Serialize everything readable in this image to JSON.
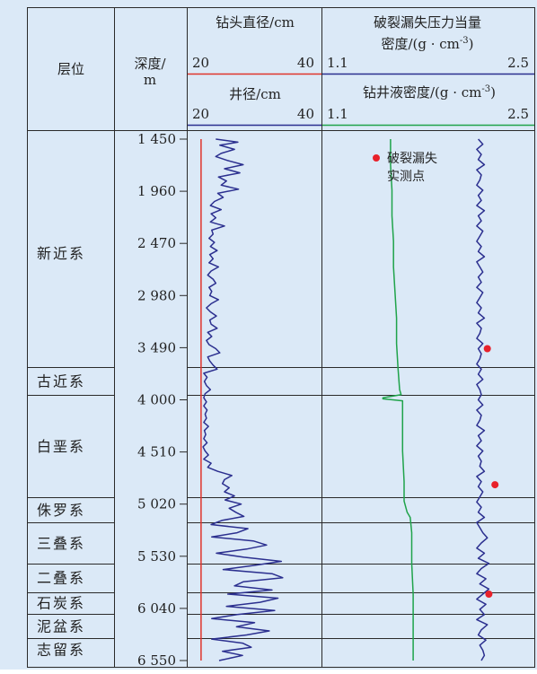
{
  "header": {
    "col_layer": "层位",
    "col_depth_line1": "深度/",
    "col_depth_line2": "m",
    "bit_title": "钻头直径/cm",
    "bit_min": "20",
    "bit_max": "40",
    "hole_title": "井径/cm",
    "hole_min": "20",
    "hole_max": "40",
    "frac_title_line1": "破裂漏失压力当量",
    "frac_title_line2": "密度/(g · cm",
    "frac_title_sup": "-3",
    "frac_title_close": ")",
    "frac_min": "1.1",
    "frac_max": "2.5",
    "mud_title": "钻井液密度/(g · cm",
    "mud_title_sup": "-3",
    "mud_title_close": ")",
    "mud_min": "1.1",
    "mud_max": "2.5"
  },
  "legend": {
    "frac_point_line1": "破裂漏失",
    "frac_point_line2": "实测点"
  },
  "colors": {
    "background": "#dbe9f7",
    "bit_line": "#e0342c",
    "hole_line": "#2b2f8f",
    "mud_line": "#1fa34a",
    "frac_line": "#2b2f8f",
    "frac_points": "#e8212a"
  },
  "chart_data": {
    "type": "line",
    "depth_unit": "m",
    "depth_ticks": [
      1450,
      1960,
      2470,
      2980,
      3490,
      4000,
      4510,
      5020,
      5530,
      6040,
      6550
    ],
    "depth_tick_labels": [
      "1 450",
      "1 960",
      "2 470",
      "2 980",
      "3 490",
      "4 000",
      "4 510",
      "5 020",
      "5 530",
      "6 040",
      "6 550"
    ],
    "ylim": [
      1450,
      6550
    ],
    "strata": [
      {
        "name": "新近系",
        "top": 1450,
        "bottom": 3680
      },
      {
        "name": "古近系",
        "top": 3680,
        "bottom": 3950
      },
      {
        "name": "白垩系",
        "top": 3950,
        "bottom": 4950
      },
      {
        "name": "侏罗系",
        "top": 4950,
        "bottom": 5200
      },
      {
        "name": "三叠系",
        "top": 5200,
        "bottom": 5600
      },
      {
        "name": "二叠系",
        "top": 5600,
        "bottom": 5880
      },
      {
        "name": "石炭系",
        "top": 5880,
        "bottom": 6090
      },
      {
        "name": "泥盆系",
        "top": 6090,
        "bottom": 6330
      },
      {
        "name": "志留系",
        "top": 6330,
        "bottom": 6550
      }
    ],
    "bit_diameter": {
      "xlim": [
        20,
        40
      ],
      "depth": [
        1450,
        6550
      ],
      "value": [
        22.0,
        22.0
      ]
    },
    "hole_diameter": {
      "xlim": [
        20,
        40
      ],
      "depth": [
        1450,
        1480,
        1510,
        1550,
        1590,
        1620,
        1660,
        1700,
        1740,
        1780,
        1820,
        1860,
        1900,
        1940,
        1980,
        2020,
        2060,
        2100,
        2140,
        2180,
        2220,
        2260,
        2300,
        2340,
        2380,
        2420,
        2460,
        2500,
        2540,
        2580,
        2620,
        2660,
        2700,
        2740,
        2780,
        2820,
        2860,
        2900,
        2940,
        2980,
        3020,
        3060,
        3100,
        3140,
        3180,
        3220,
        3260,
        3300,
        3340,
        3380,
        3420,
        3460,
        3500,
        3540,
        3580,
        3620,
        3660,
        3700,
        3740,
        3780,
        3820,
        3860,
        3900,
        3940,
        3980,
        4020,
        4060,
        4100,
        4140,
        4180,
        4220,
        4260,
        4300,
        4340,
        4380,
        4420,
        4460,
        4500,
        4540,
        4580,
        4620,
        4660,
        4700,
        4740,
        4780,
        4820,
        4860,
        4900,
        4940,
        4980,
        5020,
        5060,
        5100,
        5140,
        5180,
        5220,
        5260,
        5300,
        5340,
        5380,
        5420,
        5460,
        5500,
        5540,
        5580,
        5620,
        5660,
        5700,
        5740,
        5780,
        5820,
        5860,
        5900,
        5940,
        5980,
        6020,
        6060,
        6100,
        6140,
        6180,
        6220,
        6260,
        6300,
        6340,
        6380,
        6420,
        6460,
        6500,
        6550
      ],
      "value": [
        24.2,
        27.5,
        24.8,
        27.0,
        25.0,
        24.2,
        26.0,
        28.3,
        25.5,
        27.8,
        24.6,
        25.8,
        25.0,
        27.6,
        24.5,
        25.3,
        24.0,
        23.4,
        25.0,
        23.5,
        24.2,
        23.4,
        25.5,
        23.6,
        23.8,
        23.2,
        24.0,
        23.4,
        24.4,
        23.3,
        23.8,
        23.2,
        24.6,
        23.5,
        23.0,
        23.8,
        24.2,
        23.2,
        23.6,
        23.3,
        24.6,
        23.5,
        22.8,
        23.4,
        24.3,
        23.3,
        23.5,
        24.4,
        23.0,
        23.6,
        22.8,
        23.2,
        24.2,
        24.8,
        23.0,
        23.3,
        23.8,
        24.4,
        22.4,
        22.9,
        22.5,
        22.8,
        23.4,
        22.6,
        22.4,
        22.8,
        22.4,
        22.9,
        22.6,
        22.8,
        22.4,
        23.1,
        22.5,
        22.7,
        22.4,
        22.9,
        22.3,
        22.6,
        23.1,
        22.4,
        23.5,
        23.0,
        24.5,
        26.6,
        25.5,
        25.2,
        26.2,
        25.5,
        27.0,
        25.6,
        28.0,
        26.2,
        27.2,
        28.4,
        25.1,
        23.5,
        29.0,
        27.4,
        23.6,
        29.8,
        31.8,
        28.8,
        24.3,
        28.4,
        34.0,
        29.8,
        25.3,
        32.6,
        34.2,
        28.3,
        27.0,
        32.6,
        26.0,
        33.5,
        30.8,
        25.8,
        33.0,
        27.4,
        23.6,
        30.0,
        27.3,
        32.2,
        28.8,
        23.6,
        28.2,
        29.5,
        25.2,
        28.2,
        24.7,
        23.8
      ]
    },
    "mud_density": {
      "xlim": [
        1.1,
        2.5
      ],
      "depth": [
        1450,
        1700,
        1950,
        2200,
        2450,
        2700,
        2950,
        3200,
        3450,
        3700,
        3900,
        3950,
        3980,
        3990,
        4010,
        4200,
        4500,
        4800,
        4990,
        5100,
        5150,
        5300,
        5600,
        5900,
        6200,
        6550
      ],
      "value": [
        1.55,
        1.55,
        1.56,
        1.56,
        1.57,
        1.57,
        1.58,
        1.59,
        1.59,
        1.6,
        1.61,
        1.62,
        1.5,
        1.5,
        1.63,
        1.63,
        1.63,
        1.64,
        1.64,
        1.66,
        1.68,
        1.69,
        1.69,
        1.7,
        1.7,
        1.7
      ]
    },
    "frac_density": {
      "xlim": [
        1.1,
        2.5
      ],
      "depth": [
        1450,
        1500,
        1550,
        1600,
        1650,
        1700,
        1750,
        1800,
        1850,
        1900,
        1950,
        2000,
        2050,
        2100,
        2150,
        2200,
        2250,
        2300,
        2350,
        2400,
        2450,
        2500,
        2550,
        2600,
        2650,
        2700,
        2750,
        2800,
        2850,
        2900,
        2950,
        3000,
        3050,
        3100,
        3150,
        3200,
        3250,
        3300,
        3350,
        3400,
        3450,
        3500,
        3550,
        3600,
        3650,
        3700,
        3750,
        3800,
        3850,
        3900,
        3950,
        4000,
        4050,
        4100,
        4150,
        4200,
        4250,
        4300,
        4350,
        4400,
        4450,
        4500,
        4550,
        4600,
        4650,
        4700,
        4750,
        4800,
        4850,
        4900,
        4950,
        5000,
        5050,
        5100,
        5150,
        5200,
        5250,
        5300,
        5350,
        5400,
        5450,
        5500,
        5550,
        5600,
        5650,
        5700,
        5750,
        5800,
        5850,
        5900,
        5950,
        6000,
        6050,
        6100,
        6150,
        6200,
        6250,
        6300,
        6350,
        6400,
        6450,
        6500,
        6550
      ],
      "value": [
        2.13,
        2.16,
        2.12,
        2.15,
        2.13,
        2.17,
        2.12,
        2.15,
        2.14,
        2.12,
        2.16,
        2.13,
        2.15,
        2.12,
        2.17,
        2.13,
        2.15,
        2.12,
        2.16,
        2.14,
        2.12,
        2.15,
        2.13,
        2.17,
        2.12,
        2.14,
        2.16,
        2.13,
        2.15,
        2.12,
        2.16,
        2.14,
        2.12,
        2.15,
        2.13,
        2.17,
        2.12,
        2.15,
        2.14,
        2.12,
        2.16,
        2.13,
        2.15,
        2.14,
        2.12,
        2.15,
        2.13,
        2.16,
        2.12,
        2.14,
        2.15,
        2.13,
        2.16,
        2.12,
        2.15,
        2.14,
        2.12,
        2.17,
        2.13,
        2.15,
        2.12,
        2.16,
        2.13,
        2.15,
        2.14,
        2.17,
        2.12,
        2.15,
        2.13,
        2.16,
        2.14,
        2.12,
        2.15,
        2.13,
        2.17,
        2.12,
        2.14,
        2.16,
        2.19,
        2.15,
        2.12,
        2.17,
        2.13,
        2.2,
        2.15,
        2.12,
        2.18,
        2.14,
        2.2,
        2.16,
        2.12,
        2.18,
        2.14,
        2.17,
        2.12,
        2.19,
        2.15,
        2.13,
        2.18,
        2.14,
        2.16,
        2.17,
        2.15
      ]
    },
    "frac_points": {
      "depth": [
        3500,
        4830,
        5900
      ],
      "value": [
        2.19,
        2.24,
        2.2
      ]
    }
  }
}
